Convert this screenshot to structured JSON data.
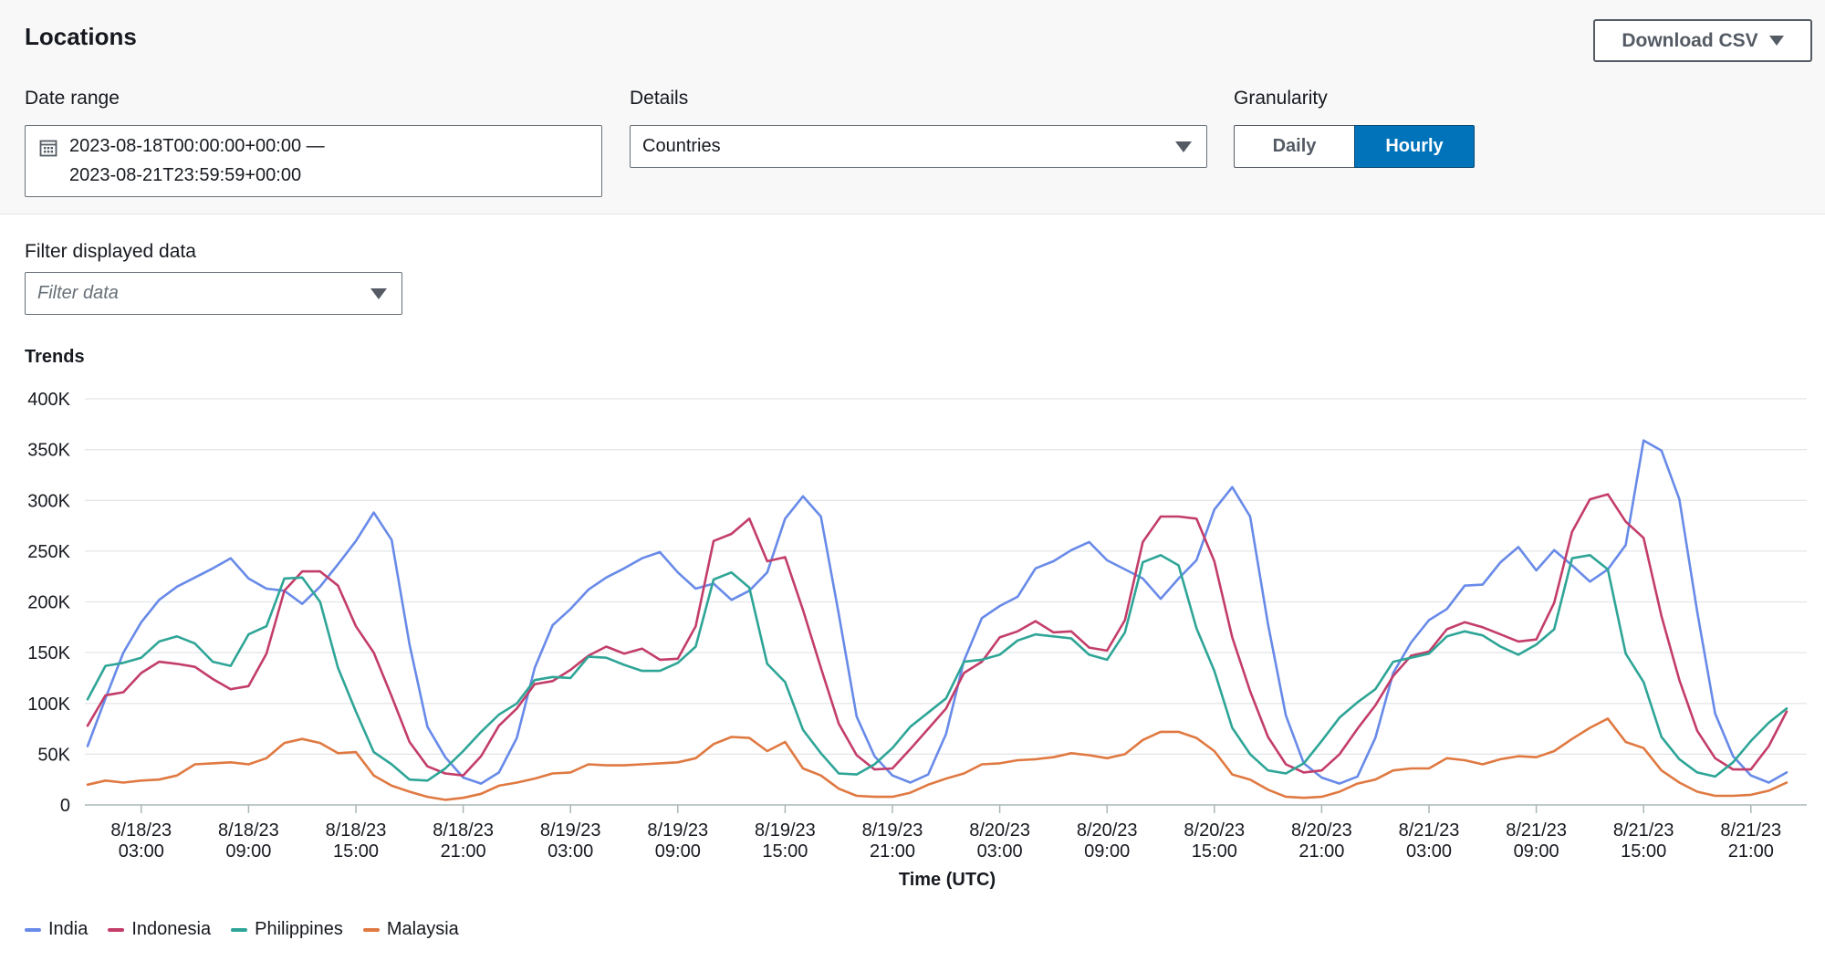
{
  "header": {
    "title": "Locations",
    "download_label": "Download CSV"
  },
  "controls": {
    "date_range_label": "Date range",
    "date_range_start": "2023-08-18T00:00:00+00:00 —",
    "date_range_end": "2023-08-21T23:59:59+00:00",
    "details_label": "Details",
    "details_value": "Countries",
    "granularity_label": "Granularity",
    "granularity_options": [
      "Daily",
      "Hourly"
    ],
    "granularity_selected": "Hourly",
    "filter_label": "Filter displayed data",
    "filter_placeholder": "Filter data"
  },
  "icons": {
    "calendar": "calendar-icon",
    "dropdown": "caret-down-icon"
  },
  "chart_data": {
    "type": "line",
    "title": "Trends",
    "xlabel": "Time (UTC)",
    "ylabel": "",
    "ylim": [
      0,
      400000
    ],
    "y_ticks": [
      "0",
      "50K",
      "100K",
      "150K",
      "200K",
      "250K",
      "300K",
      "350K",
      "400K"
    ],
    "x_ticks": [
      {
        "date": "8/18/23",
        "time": "03:00"
      },
      {
        "date": "8/18/23",
        "time": "09:00"
      },
      {
        "date": "8/18/23",
        "time": "15:00"
      },
      {
        "date": "8/18/23",
        "time": "21:00"
      },
      {
        "date": "8/19/23",
        "time": "03:00"
      },
      {
        "date": "8/19/23",
        "time": "09:00"
      },
      {
        "date": "8/19/23",
        "time": "15:00"
      },
      {
        "date": "8/19/23",
        "time": "21:00"
      },
      {
        "date": "8/20/23",
        "time": "03:00"
      },
      {
        "date": "8/20/23",
        "time": "09:00"
      },
      {
        "date": "8/20/23",
        "time": "15:00"
      },
      {
        "date": "8/20/23",
        "time": "21:00"
      },
      {
        "date": "8/21/23",
        "time": "03:00"
      },
      {
        "date": "8/21/23",
        "time": "09:00"
      },
      {
        "date": "8/21/23",
        "time": "15:00"
      },
      {
        "date": "8/21/23",
        "time": "21:00"
      }
    ],
    "grid": true,
    "legend_position": "bottom-left",
    "x_start": "2023-08-18 00:00",
    "x_interval": "1 hour",
    "series": [
      {
        "name": "India",
        "color": "#688ae8",
        "values": [
          58000,
          105000,
          150000,
          180000,
          202000,
          215000,
          224000,
          233000,
          243000,
          223000,
          213000,
          211000,
          198000,
          215000,
          237000,
          260000,
          288000,
          261000,
          158000,
          77000,
          47000,
          27000,
          21000,
          32000,
          66000,
          135000,
          177000,
          193000,
          212000,
          224000,
          233000,
          243000,
          249000,
          229000,
          213000,
          218000,
          202000,
          211000,
          229000,
          282000,
          304000,
          284000,
          188000,
          87000,
          48000,
          29000,
          22000,
          30000,
          70000,
          142000,
          184000,
          196000,
          205000,
          233000,
          240000,
          251000,
          259000,
          241000,
          232000,
          223000,
          203000,
          223000,
          241000,
          291000,
          313000,
          284000,
          178000,
          88000,
          41000,
          27000,
          21000,
          28000,
          66000,
          130000,
          160000,
          182000,
          193000,
          216000,
          217000,
          239000,
          254000,
          231000,
          251000,
          236000,
          220000,
          232000,
          256000,
          359000,
          349000,
          301000,
          190000,
          90000,
          48000,
          29000,
          22000,
          32000
        ]
      },
      {
        "name": "Indonesia",
        "color": "#c33d69",
        "values": [
          78000,
          108000,
          111000,
          130000,
          141000,
          139000,
          136000,
          124000,
          114000,
          117000,
          149000,
          211000,
          230000,
          230000,
          216000,
          176000,
          150000,
          107000,
          62000,
          38000,
          31000,
          29000,
          48000,
          78000,
          95000,
          119000,
          122000,
          133000,
          147000,
          156000,
          149000,
          154000,
          143000,
          144000,
          176000,
          260000,
          267000,
          282000,
          240000,
          244000,
          192000,
          135000,
          80000,
          49000,
          35000,
          36000,
          55000,
          75000,
          95000,
          130000,
          141000,
          165000,
          171000,
          181000,
          170000,
          171000,
          155000,
          152000,
          182000,
          259000,
          284000,
          284000,
          282000,
          240000,
          165000,
          112000,
          67000,
          40000,
          32000,
          34000,
          50000,
          75000,
          98000,
          127000,
          147000,
          151000,
          173000,
          180000,
          175000,
          168000,
          161000,
          163000,
          199000,
          269000,
          301000,
          306000,
          279000,
          263000,
          186000,
          123000,
          73000,
          46000,
          35000,
          35000,
          58000,
          92000
        ]
      },
      {
        "name": "Philippines",
        "color": "#2ea597",
        "values": [
          104000,
          137000,
          140000,
          145000,
          161000,
          166000,
          159000,
          141000,
          137000,
          168000,
          176000,
          223000,
          224000,
          200000,
          135000,
          92000,
          52000,
          40000,
          25000,
          24000,
          36000,
          53000,
          72000,
          89000,
          100000,
          123000,
          126000,
          125000,
          146000,
          145000,
          138000,
          132000,
          132000,
          140000,
          156000,
          222000,
          229000,
          214000,
          139000,
          121000,
          74000,
          51000,
          31000,
          30000,
          40000,
          56000,
          77000,
          91000,
          105000,
          141000,
          143000,
          148000,
          162000,
          168000,
          166000,
          164000,
          148000,
          143000,
          170000,
          239000,
          246000,
          236000,
          174000,
          132000,
          76000,
          50000,
          34000,
          31000,
          41000,
          63000,
          86000,
          101000,
          114000,
          141000,
          145000,
          149000,
          166000,
          171000,
          167000,
          156000,
          148000,
          158000,
          173000,
          243000,
          246000,
          232000,
          149000,
          121000,
          67000,
          45000,
          32000,
          28000,
          42000,
          63000,
          81000,
          95000
        ]
      },
      {
        "name": "Malaysia",
        "color": "#e07941",
        "values": [
          20000,
          24000,
          22000,
          24000,
          25000,
          29000,
          40000,
          41000,
          42000,
          40000,
          46000,
          61000,
          65000,
          61000,
          51000,
          52000,
          29000,
          19000,
          13000,
          8000,
          5000,
          7000,
          11000,
          19000,
          22000,
          26000,
          31000,
          32000,
          40000,
          39000,
          39000,
          40000,
          41000,
          42000,
          46000,
          60000,
          67000,
          66000,
          53000,
          62000,
          36000,
          29000,
          16000,
          9000,
          8000,
          8000,
          12000,
          20000,
          26000,
          31000,
          40000,
          41000,
          44000,
          45000,
          47000,
          51000,
          49000,
          46000,
          50000,
          64000,
          72000,
          72000,
          66000,
          53000,
          30000,
          25000,
          15000,
          8000,
          7000,
          8000,
          13000,
          21000,
          25000,
          34000,
          36000,
          36000,
          46000,
          44000,
          40000,
          45000,
          48000,
          47000,
          53000,
          65000,
          76000,
          85000,
          62000,
          56000,
          34000,
          22000,
          13000,
          9000,
          9000,
          10000,
          14000,
          22000
        ]
      }
    ]
  }
}
